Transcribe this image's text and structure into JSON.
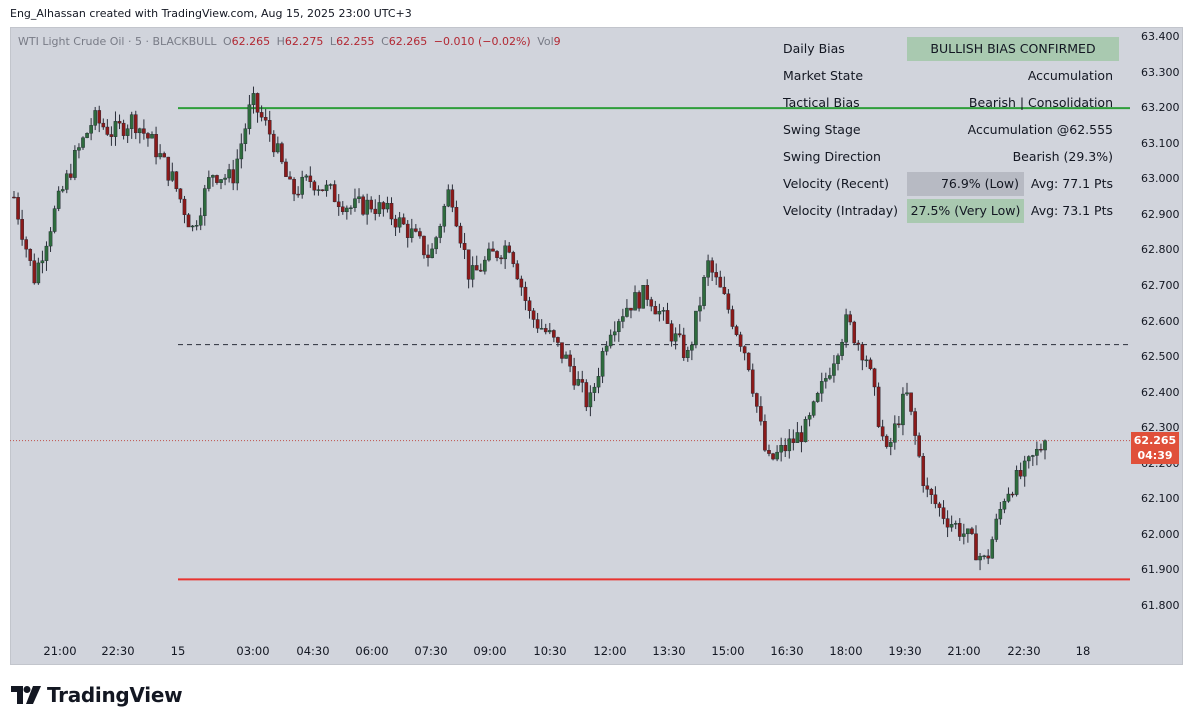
{
  "header": {
    "text": "Eng_Alhassan created with TradingView.com, Aug 15, 2025 23:00 UTC+3"
  },
  "legend": {
    "symbol": "WTI Light Crude Oil · 5 · BLACKBULL",
    "o_key": "O",
    "o_val": "62.265",
    "h_key": "H",
    "h_val": "62.275",
    "l_key": "L",
    "l_val": "62.255",
    "c_key": "C",
    "c_val": "62.265",
    "change": "−0.010 (−0.02%)",
    "vol_key": "Vol",
    "vol_val": "9"
  },
  "bias_table": {
    "rows": [
      {
        "label": "Daily Bias",
        "value": "BULLISH BIAS CONFIRMED"
      },
      {
        "label": "Market State",
        "value": "Accumulation"
      },
      {
        "label": "Tactical Bias",
        "value": "Bearish | Consolidation"
      },
      {
        "label": "Swing Stage",
        "value": "Accumulation @62.555"
      },
      {
        "label": "Swing Direction",
        "value": "Bearish (29.3%)"
      },
      {
        "label": "Velocity (Recent)",
        "value": "76.9% (Low)",
        "avg": "Avg: 77.1 Pts"
      },
      {
        "label": "Velocity (Intraday)",
        "value": "27.5% (Very Low)",
        "avg": "Avg: 73.1 Pts"
      }
    ]
  },
  "price_axis": [
    "63.400",
    "63.300",
    "63.200",
    "63.100",
    "63.000",
    "62.900",
    "62.800",
    "62.700",
    "62.600",
    "62.500",
    "62.400",
    "62.300",
    "62.200",
    "62.100",
    "62.000",
    "61.900",
    "61.800"
  ],
  "time_axis": [
    "21:00",
    "22:30",
    "15",
    "03:00",
    "04:30",
    "06:00",
    "07:30",
    "09:00",
    "10:30",
    "12:00",
    "13:30",
    "15:00",
    "16:30",
    "18:00",
    "19:30",
    "21:00",
    "22:30",
    "18"
  ],
  "current_price": {
    "price": "62.265",
    "countdown": "04:39"
  },
  "levels": {
    "resistance": 63.2,
    "mid": 62.535,
    "support": 61.875
  },
  "colors": {
    "background": "#d1d4dc",
    "up": "#2e6b3d",
    "down": "#8b1a1a",
    "resistance": "#2e9e3a",
    "support": "#e8332f",
    "price_tag": "#e0503a"
  },
  "branding": {
    "logo_text": "TradingView"
  },
  "chart_data": {
    "type": "candlestick",
    "symbol": "WTI Light Crude Oil",
    "interval": "5",
    "ylim": [
      61.75,
      63.42
    ],
    "x_ticks": [
      "21:00",
      "22:30",
      "15",
      "03:00",
      "04:30",
      "06:00",
      "07:30",
      "09:00",
      "10:30",
      "12:00",
      "13:30",
      "15:00",
      "16:30",
      "18:00",
      "19:30",
      "21:00",
      "22:30",
      "18"
    ],
    "close_path": [
      62.95,
      62.72,
      62.9,
      63.05,
      63.17,
      63.13,
      63.17,
      63.1,
      63.0,
      62.86,
      63.02,
      63.0,
      63.22,
      63.12,
      62.96,
      63.0,
      62.96,
      62.92,
      62.93,
      62.9,
      62.85,
      62.78,
      62.98,
      62.72,
      62.78,
      62.82,
      62.62,
      62.56,
      62.48,
      62.36,
      62.58,
      62.65,
      62.68,
      62.58,
      62.5,
      62.76,
      62.64,
      62.5,
      62.2,
      62.25,
      62.3,
      62.45,
      62.6,
      62.5,
      62.22,
      62.4,
      62.12,
      62.05,
      62.0,
      61.92,
      62.12,
      62.18,
      62.265
    ],
    "last": 62.265
  }
}
